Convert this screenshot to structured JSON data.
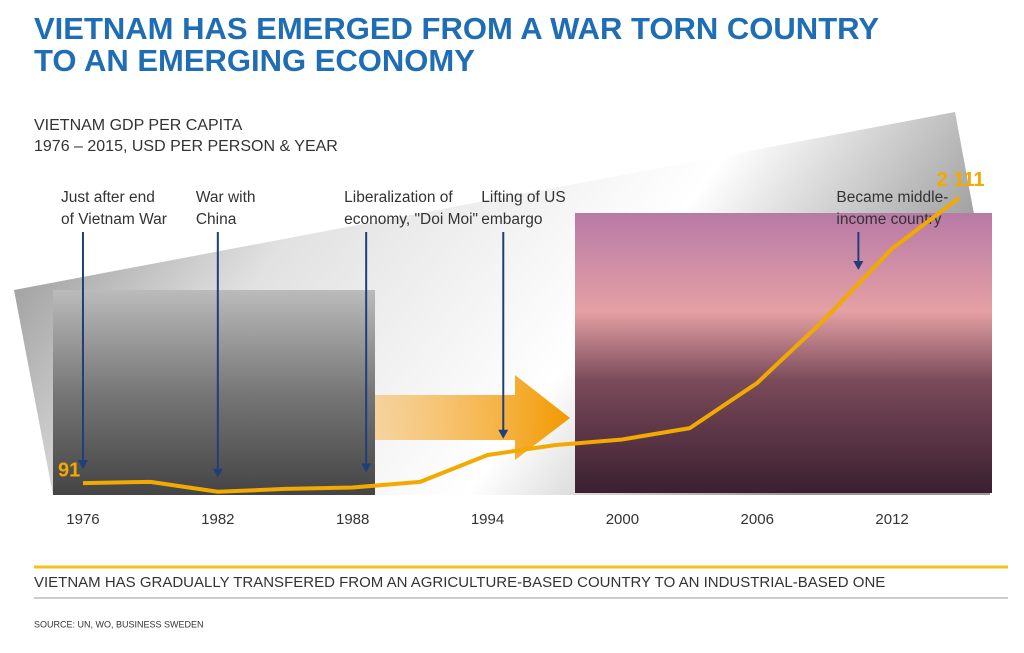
{
  "header": {
    "title_lines": [
      "VIETNAM HAS EMERGED FROM A WAR TORN COUNTRY",
      "TO AN EMERGING ECONOMY"
    ]
  },
  "chart_data": {
    "type": "line",
    "subtitle_lines": [
      "VIETNAM GDP PER CAPITA",
      "1976 – 2015, USD PER PERSON & YEAR"
    ],
    "x": [
      1976,
      1979,
      1982,
      1985,
      1988,
      1991,
      1994,
      1997,
      2000,
      2003,
      2006,
      2009,
      2012,
      2015
    ],
    "series": [
      {
        "color": "#f2a900",
        "values": [
          91,
          100,
          30,
          50,
          60,
          100,
          290,
          360,
          400,
          480,
          800,
          1250,
          1750,
          2111
        ],
        "value_labels": [
          "91",
          null,
          null,
          null,
          null,
          null,
          null,
          null,
          null,
          null,
          null,
          null,
          null,
          "2 111"
        ]
      }
    ],
    "xlim": [
      1975,
      2016
    ],
    "ylim": [
      0,
      2200
    ],
    "xticks": [
      1976,
      1982,
      1988,
      1994,
      2000,
      2006,
      2012
    ],
    "annotations": [
      {
        "x": 1976,
        "lines": [
          "Just after end",
          "of Vietnam War"
        ]
      },
      {
        "x": 1982,
        "lines": [
          "War with",
          "China"
        ]
      },
      {
        "x": 1988.6,
        "lines": [
          "Liberalization of",
          "economy, \"Doi Moi\""
        ]
      },
      {
        "x": 1994.7,
        "lines": [
          "Lifting of US",
          "embargo"
        ]
      },
      {
        "x": 2010.5,
        "lines": [
          "Became middle-",
          "income country"
        ]
      }
    ]
  },
  "footer": {
    "conclusion": "VIETNAM HAS GRADUALLY TRANSFERED FROM AN AGRICULTURE-BASED COUNTRY TO AN INDUSTRIAL-BASED ONE",
    "source": "SOURCE: UN, WO, BUSINESS SWEDEN"
  }
}
